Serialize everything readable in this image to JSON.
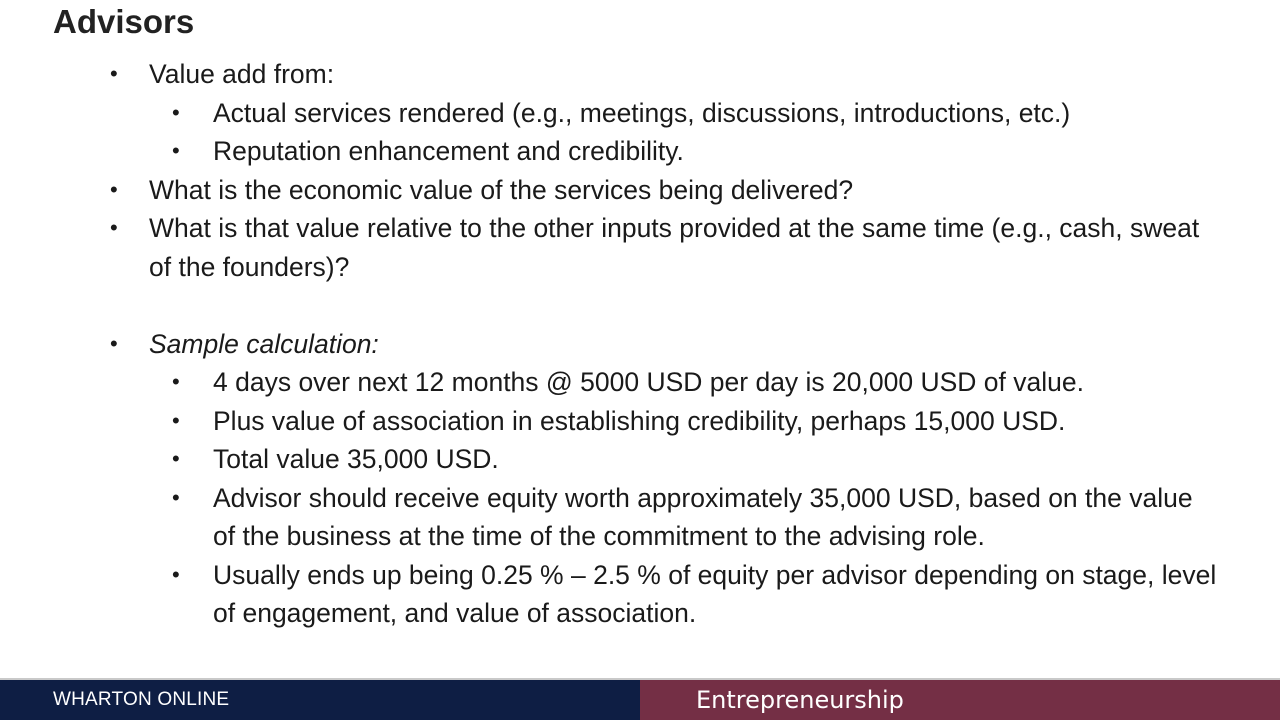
{
  "slide": {
    "title": "Advisors",
    "bullets": [
      {
        "level": 1,
        "text": "Value add from:"
      },
      {
        "level": 2,
        "text": "Actual services rendered (e.g., meetings, discussions, introductions, etc.)"
      },
      {
        "level": 2,
        "text": "Reputation enhancement and credibility."
      },
      {
        "level": 1,
        "text": "What is the economic value of the services being delivered?"
      },
      {
        "level": 1,
        "text": "What is that value relative to the other inputs provided at the same time (e.g., cash, sweat of the founders)?"
      },
      {
        "level": 1,
        "text": "Sample calculation:"
      },
      {
        "level": 2,
        "text": "4 days over next 12 months @ 5000 USD per day is 20,000 USD of value."
      },
      {
        "level": 2,
        "text": "Plus value of association in establishing credibility, perhaps 15,000 USD."
      },
      {
        "level": 2,
        "text": "Total value 35,000 USD."
      },
      {
        "level": 2,
        "text": "Advisor should receive equity worth approximately 35,000 USD, based on the value of the business at the time of the commitment to the advising role."
      },
      {
        "level": 2,
        "text": "Usually ends up being 0.25 % – 2.5 % of equity per advisor depending on stage, level of engagement, and value of association."
      }
    ],
    "bullet_glyph": "•"
  },
  "footer": {
    "left_label": "WHARTON ONLINE",
    "right_label": "Entrepreneurship",
    "colors": {
      "left_bg": "#0e1e44",
      "right_bg": "#742f45"
    }
  }
}
